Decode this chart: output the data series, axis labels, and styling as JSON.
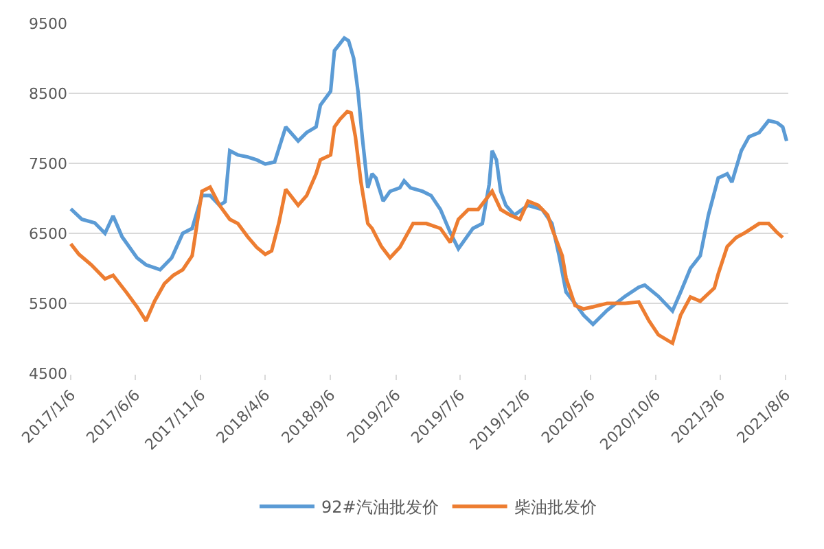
{
  "chart_data": {
    "type": "line",
    "series": [
      {
        "name": "92#汽油批发价",
        "color": "#5b9bd5",
        "x": [
          "2017-01-06",
          "2017-02-01",
          "2017-03-03",
          "2017-03-27",
          "2017-04-15",
          "2017-05-06",
          "2017-06-10",
          "2017-07-01",
          "2017-08-03",
          "2017-08-30",
          "2017-09-25",
          "2017-10-17",
          "2017-11-09",
          "2017-11-28",
          "2017-12-20",
          "2018-01-02",
          "2018-01-13",
          "2018-02-01",
          "2018-02-24",
          "2018-03-17",
          "2018-04-06",
          "2018-04-28",
          "2018-05-24",
          "2018-06-22",
          "2018-07-12",
          "2018-08-03",
          "2018-08-13",
          "2018-09-06",
          "2018-09-15",
          "2018-10-08",
          "2018-10-18",
          "2018-10-30",
          "2018-11-09",
          "2018-11-19",
          "2018-12-02",
          "2018-12-12",
          "2018-12-21",
          "2019-01-07",
          "2019-01-23",
          "2019-02-15",
          "2019-02-25",
          "2019-03-12",
          "2019-04-09",
          "2019-04-29",
          "2019-05-21",
          "2019-06-13",
          "2019-07-02",
          "2019-08-05",
          "2019-08-27",
          "2019-09-12",
          "2019-09-19",
          "2019-09-29",
          "2019-10-09",
          "2019-10-21",
          "2019-11-10",
          "2019-12-12",
          "2020-01-14",
          "2020-02-06",
          "2020-02-22",
          "2020-03-10",
          "2020-03-31",
          "2020-04-20",
          "2020-05-12",
          "2020-06-14",
          "2020-07-26",
          "2020-08-27",
          "2020-09-10",
          "2020-10-12",
          "2020-11-14",
          "2020-12-03",
          "2020-12-26",
          "2021-01-18",
          "2021-02-06",
          "2021-03-01",
          "2021-03-22",
          "2021-04-02",
          "2021-04-24",
          "2021-05-12",
          "2021-06-05",
          "2021-06-27",
          "2021-07-17",
          "2021-07-30",
          "2021-08-08"
        ],
        "values": [
          6850,
          6700,
          6650,
          6500,
          6750,
          6450,
          6150,
          6050,
          5980,
          6150,
          6500,
          6570,
          7040,
          7040,
          6900,
          6950,
          7680,
          7620,
          7590,
          7550,
          7490,
          7520,
          8020,
          7820,
          7940,
          8020,
          8330,
          8530,
          9110,
          9290,
          9250,
          9000,
          8530,
          7880,
          7150,
          7350,
          7290,
          6960,
          7100,
          7150,
          7250,
          7150,
          7100,
          7040,
          6840,
          6510,
          6280,
          6570,
          6640,
          7200,
          7680,
          7550,
          7100,
          6900,
          6760,
          6900,
          6840,
          6640,
          6200,
          5660,
          5500,
          5330,
          5200,
          5400,
          5600,
          5730,
          5760,
          5600,
          5390,
          5660,
          6000,
          6180,
          6760,
          7290,
          7350,
          7230,
          7680,
          7880,
          7940,
          8110,
          8080,
          8020,
          7820
        ]
      },
      {
        "name": "柴油批发价",
        "color": "#ed7d31",
        "x": [
          "2017-01-06",
          "2017-01-25",
          "2017-02-23",
          "2017-03-27",
          "2017-04-15",
          "2017-05-17",
          "2017-06-10",
          "2017-07-01",
          "2017-07-21",
          "2017-08-13",
          "2017-09-03",
          "2017-09-25",
          "2017-10-17",
          "2017-11-09",
          "2017-11-28",
          "2017-12-20",
          "2018-01-13",
          "2018-02-01",
          "2018-02-24",
          "2018-03-17",
          "2018-04-06",
          "2018-04-21",
          "2018-05-08",
          "2018-05-24",
          "2018-06-22",
          "2018-07-12",
          "2018-08-03",
          "2018-08-13",
          "2018-09-06",
          "2018-09-15",
          "2018-09-28",
          "2018-10-15",
          "2018-10-24",
          "2018-11-03",
          "2018-11-16",
          "2018-12-02",
          "2018-12-12",
          "2019-01-03",
          "2019-01-23",
          "2019-02-15",
          "2019-03-18",
          "2019-04-18",
          "2019-05-21",
          "2019-06-13",
          "2019-07-02",
          "2019-07-25",
          "2019-08-17",
          "2019-09-19",
          "2019-10-09",
          "2019-10-31",
          "2019-11-23",
          "2019-12-12",
          "2020-01-05",
          "2020-01-27",
          "2020-02-06",
          "2020-03-01",
          "2020-03-10",
          "2020-03-31",
          "2020-04-20",
          "2020-05-12",
          "2020-06-14",
          "2020-07-26",
          "2020-08-27",
          "2020-09-20",
          "2020-10-12",
          "2020-11-14",
          "2020-12-03",
          "2020-12-26",
          "2021-01-18",
          "2021-02-20",
          "2021-03-01",
          "2021-03-22",
          "2021-04-12",
          "2021-05-03",
          "2021-06-05",
          "2021-06-27",
          "2021-07-17",
          "2021-07-30"
        ],
        "values": [
          6350,
          6200,
          6050,
          5850,
          5900,
          5650,
          5450,
          5250,
          5530,
          5780,
          5900,
          5980,
          6180,
          7100,
          7160,
          6900,
          6700,
          6640,
          6450,
          6300,
          6200,
          6250,
          6650,
          7130,
          6900,
          7040,
          7350,
          7550,
          7620,
          8020,
          8130,
          8240,
          8220,
          7880,
          7230,
          6640,
          6570,
          6310,
          6150,
          6300,
          6640,
          6640,
          6570,
          6370,
          6700,
          6840,
          6840,
          7100,
          6840,
          6760,
          6700,
          6960,
          6900,
          6760,
          6570,
          6180,
          5860,
          5470,
          5420,
          5450,
          5500,
          5500,
          5520,
          5250,
          5050,
          4930,
          5330,
          5590,
          5530,
          5720,
          5920,
          6310,
          6440,
          6510,
          6640,
          6640,
          6510,
          6440
        ]
      }
    ],
    "xlim": [
      "2017-01-01",
      "2021-08-12"
    ],
    "xticks": [
      {
        "value": "2017-01-06",
        "label": "2017/1/6"
      },
      {
        "value": "2017-06-06",
        "label": "2017/6/6"
      },
      {
        "value": "2017-11-06",
        "label": "2017/11/6"
      },
      {
        "value": "2018-04-06",
        "label": "2018/4/6"
      },
      {
        "value": "2018-09-06",
        "label": "2018/9/6"
      },
      {
        "value": "2019-02-06",
        "label": "2019/2/6"
      },
      {
        "value": "2019-07-06",
        "label": "2019/7/6"
      },
      {
        "value": "2019-12-06",
        "label": "2019/12/6"
      },
      {
        "value": "2020-05-06",
        "label": "2020/5/6"
      },
      {
        "value": "2020-10-06",
        "label": "2020/10/6"
      },
      {
        "value": "2021-03-06",
        "label": "2021/3/6"
      },
      {
        "value": "2021-08-06",
        "label": "2021/8/6"
      }
    ],
    "ylim": [
      4500,
      9500
    ],
    "yticks": [
      4500,
      5500,
      6500,
      7500,
      8500,
      9500
    ],
    "grid": "y",
    "legend": "bottom"
  }
}
